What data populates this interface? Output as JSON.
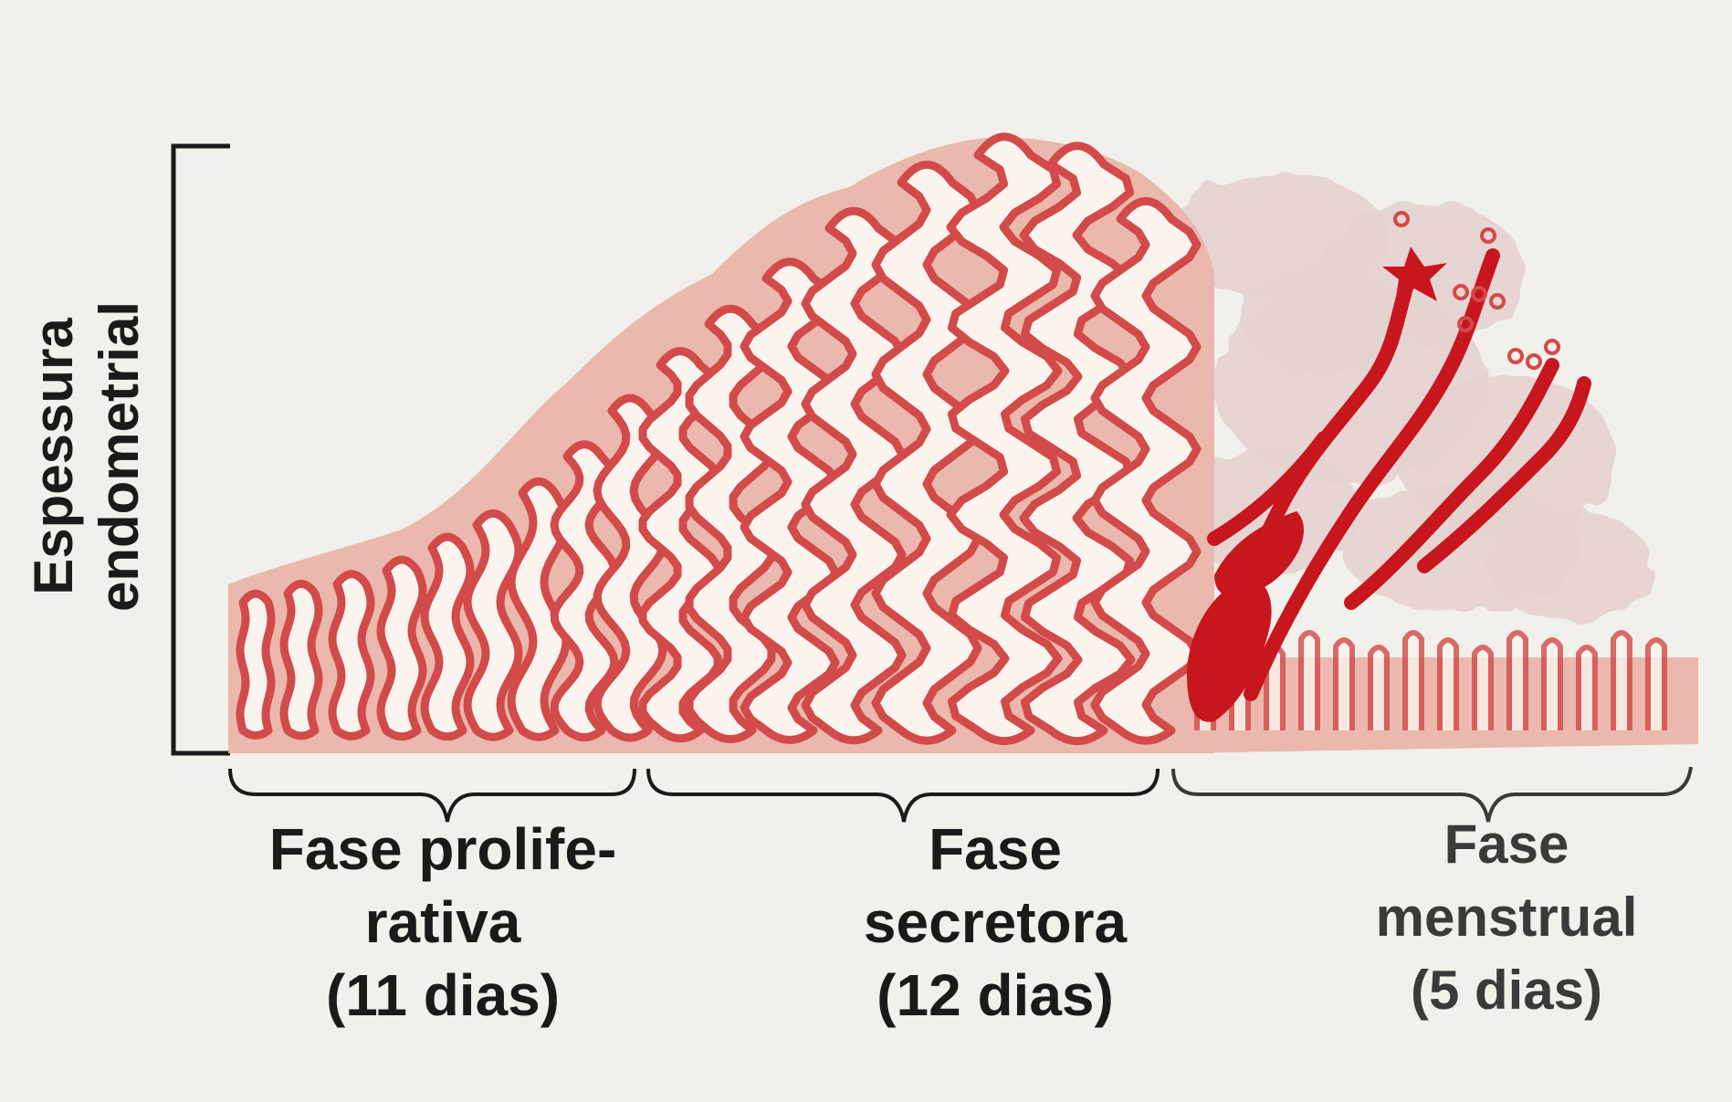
{
  "axis": {
    "line1": "Espessura",
    "line2": "endometrial"
  },
  "phases": [
    {
      "line1": "Fase prolife-",
      "line2": "rativa",
      "line3": "(11 dias)"
    },
    {
      "line1": "Fase",
      "line2": "secretora",
      "line3": "(12 dias)"
    },
    {
      "line1": "Fase",
      "line2": "menstrual",
      "line3": "(5 dias)"
    }
  ],
  "colors": {
    "tissue": "#eab8ac",
    "gland_outline": "#d24a4a",
    "gland_lumen": "#fbf3ee",
    "blood": "#c8161e",
    "shed_tissue": "#e4d3cf",
    "ink": "#1a1a1a"
  },
  "icons": [
    "endometrium-illustration",
    "bracket-icon",
    "brace-icon"
  ]
}
